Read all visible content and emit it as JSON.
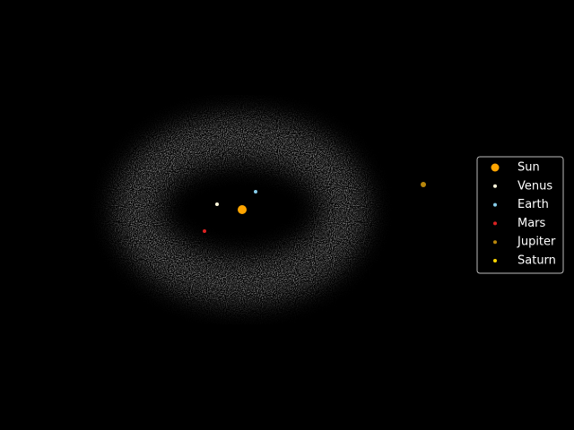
{
  "chart_data": {
    "type": "scatter",
    "xlim": [
      -5.4,
      7.4
    ],
    "ylim": [
      -4.92,
      4.68
    ],
    "legend": "right",
    "series": [
      {
        "name": "Sun",
        "color": "#ffa500",
        "x": [
          0
        ],
        "y": [
          0
        ]
      },
      {
        "name": "Venus",
        "color": "#fff8dc",
        "x": [
          -0.56
        ],
        "y": [
          0.12
        ]
      },
      {
        "name": "Earth",
        "color": "#87ceeb",
        "x": [
          0.3
        ],
        "y": [
          0.4
        ]
      },
      {
        "name": "Mars",
        "color": "#dd2222",
        "x": [
          -0.84
        ],
        "y": [
          -0.48
        ]
      },
      {
        "name": "Jupiter",
        "color": "#b8860b",
        "x": [
          4.04
        ],
        "y": [
          0.56
        ]
      },
      {
        "name": "Saturn",
        "color": "#ffd700",
        "x": [
          null
        ],
        "y": [
          null
        ]
      }
    ]
  }
}
